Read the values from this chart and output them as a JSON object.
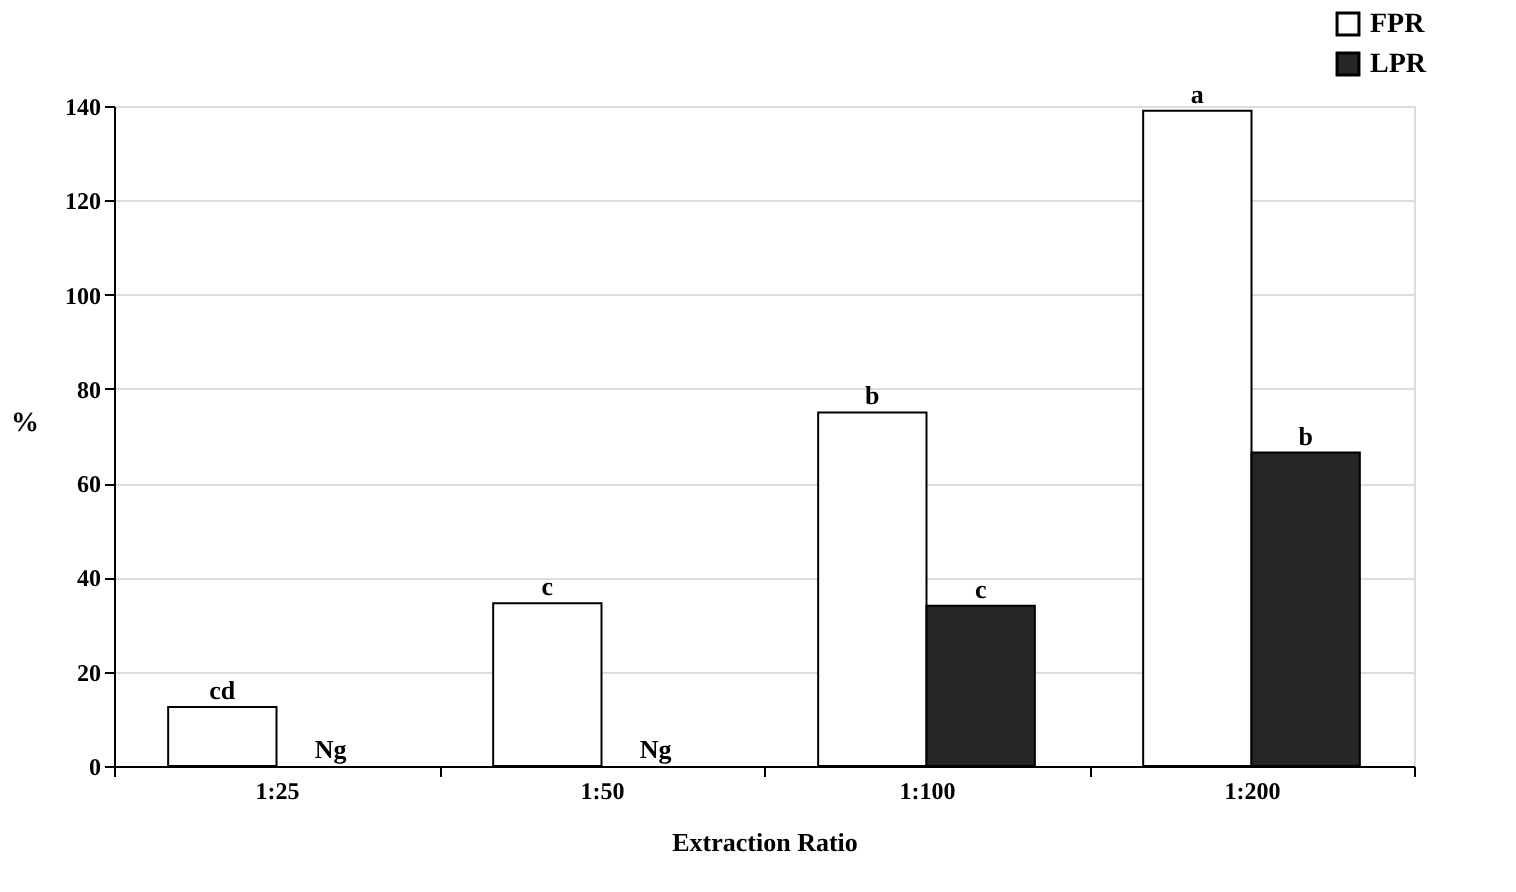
{
  "chart_data": {
    "type": "bar",
    "xlabel": "Extraction Ratio",
    "ylabel": "%",
    "categories": [
      "1:25",
      "1:50",
      "1:100",
      "1:200"
    ],
    "series": [
      {
        "name": "FPR",
        "color": "#ffffff",
        "values": [
          12.5,
          34.5,
          75,
          139
        ],
        "value_labels": [
          "cd",
          "c",
          "b",
          "a"
        ]
      },
      {
        "name": "LPR",
        "color": "#262626",
        "values": [
          null,
          null,
          34,
          66.5
        ],
        "value_labels": [
          "Ng",
          "Ng",
          "c",
          "b"
        ]
      }
    ],
    "ylim": [
      0,
      140
    ],
    "yticks": [
      0,
      20,
      40,
      60,
      80,
      100,
      120,
      140
    ],
    "grid": "y",
    "legend": "top right"
  }
}
